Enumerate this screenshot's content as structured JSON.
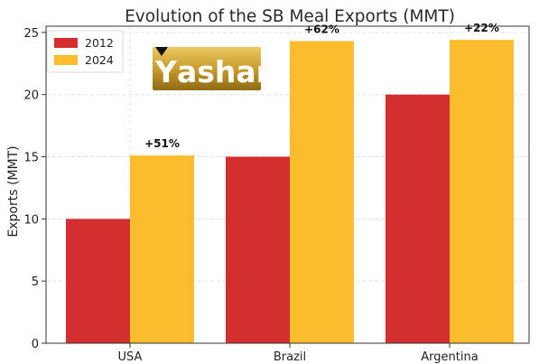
{
  "chart_data": {
    "type": "bar",
    "title": "Evolution of the SB Meal Exports (MMT)",
    "xlabel": "",
    "ylabel": "Exports (MMT)",
    "categories": [
      "USA",
      "Brazil",
      "Argentina"
    ],
    "series": [
      {
        "name": "2012",
        "values": [
          10,
          15,
          20
        ],
        "color": "#d42f2f"
      },
      {
        "name": "2024",
        "values": [
          15.1,
          24.3,
          24.4
        ],
        "color": "#fbbd2e"
      }
    ],
    "annotations": [
      "+51%",
      "+62%",
      "+22%"
    ],
    "ylim": [
      0,
      25.5
    ],
    "yticks": [
      0,
      5,
      10,
      15,
      20,
      25
    ],
    "grid": true,
    "legend_position": "top-left"
  },
  "logo": {
    "text": "ashar",
    "initial": "Y",
    "colors": {
      "gold_light": "#e6c45a",
      "gold_dark": "#8f6a14",
      "mark": "#111111"
    }
  }
}
